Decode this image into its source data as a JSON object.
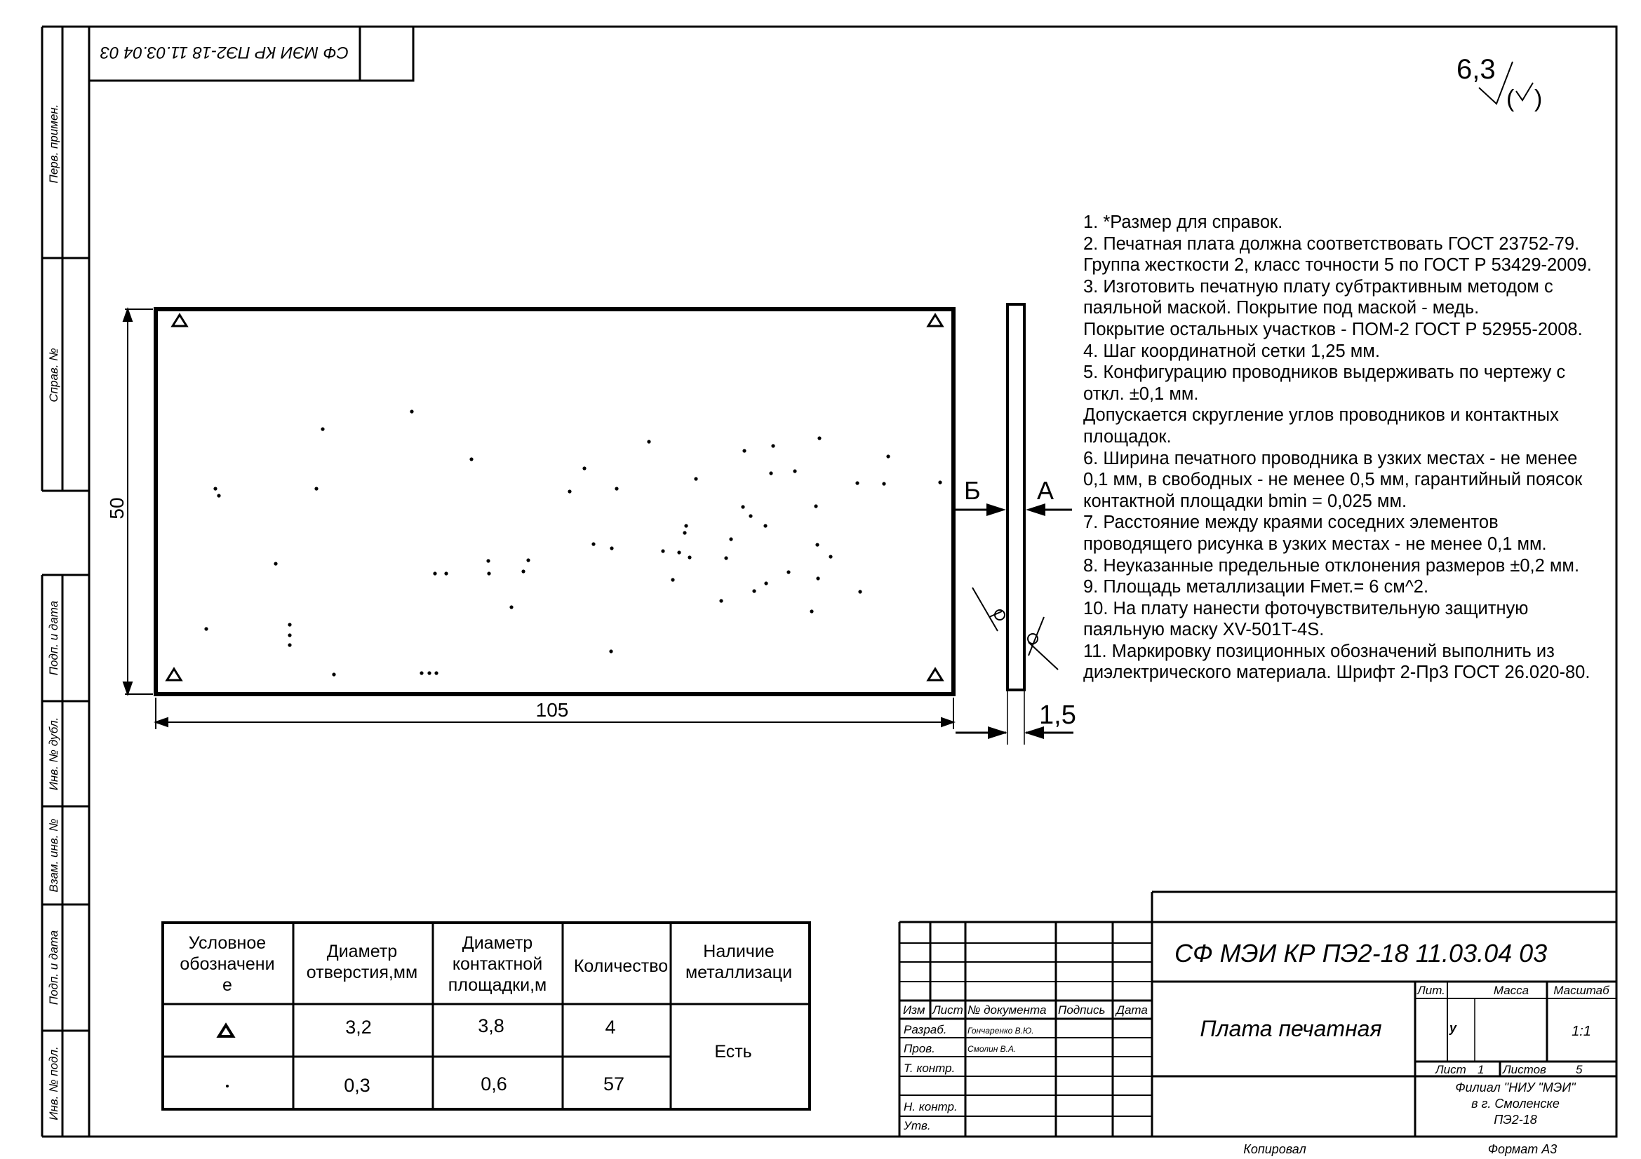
{
  "corner_stamp": "СФ МЭИ КР ПЭ2-18 11.03.04 03",
  "roughness": {
    "value": "6,3"
  },
  "side_labels": [
    "Перв. примен.",
    "Справ. №",
    "Подп. и дата",
    "Инв. № дубл.",
    "Взам. инв. №",
    "Подп. и дата",
    "Инв. № подл."
  ],
  "drawing": {
    "dim_width": "105",
    "dim_height": "50",
    "dim_thickness": "1,5",
    "view_label_b": "Б",
    "view_label_a": "А"
  },
  "notes": [
    "1. *Размер для справок.",
    "2. Печатная плата должна соответствовать ГОСТ 23752-79.",
    "Группа жесткости 2, класс точности 5 по ГОСТ Р 53429-2009.",
    "3. Изготовить печатную плату субтрактивным методом с паяльной маской. Покрытие под маской - медь.",
    "Покрытие остальных участков - ПОМ-2 ГОСТ Р 52955-2008.",
    "4. Шаг координатной сетки 1,25 мм.",
    "5. Конфигурацию проводников выдерживать по чертежу с откл. ±0,1 мм.",
    "Допускается скругление углов проводников и контактных площадок.",
    "6. Ширина печатного проводника в узких местах - не менее 0,1 мм, в свободных - не менее 0,5 мм, гарантийный поясок контактной площадки bmin = 0,025 мм.",
    "7. Расстояние между краями соседних элементов проводящего рисунка в узких местах - не менее 0,1 мм.",
    "8. Неуказанные предельные отклонения размеров ±0,2 мм.",
    "9. Площадь металлизации Fмет.= 6 см^2.",
    "10. На плату нанести фоточувствительную защитную паяльную маску XV-501T-4S.",
    "11. Маркировку позиционных обозначений выполнить из диэлектрического материала. Шрифт 2-Пр3 ГОСТ 26.020-80."
  ],
  "holes_table": {
    "headers": [
      [
        "Условное",
        "обозначени",
        "е"
      ],
      [
        "Диаметр",
        "отверстия,мм"
      ],
      [
        "Диаметр",
        "контактной",
        "площадки,м"
      ],
      [
        "Количество"
      ],
      [
        "Наличие",
        "металлизаци"
      ]
    ],
    "rows": [
      {
        "symbol": "triangle",
        "hole": "3,2",
        "pad": "3,8",
        "count": "4"
      },
      {
        "symbol": "dot",
        "hole": "0,3",
        "pad": "0,6",
        "count": "57"
      }
    ],
    "metallization": "Есть"
  },
  "title_block": {
    "designation": "СФ МЭИ КР ПЭ2-18 11.03.04 03",
    "name": "Плата печатная",
    "col_headers": [
      "Изм",
      "Лист",
      "№ документа",
      "Подпись",
      "Дата"
    ],
    "roles": [
      "Разраб.",
      "Пров.",
      "Т. контр.",
      "Н. контр.",
      "Утв."
    ],
    "developer": "Гончаренко В.Ю.",
    "checker": "Смолин В.А.",
    "lit_label": "Лит.",
    "mass_label": "Масса",
    "scale_label": "Масштаб",
    "lit_value": "у",
    "scale_value": "1:1",
    "sheet_label": "Лист",
    "sheet_value": "1",
    "sheets_label": "Листов",
    "sheets_value": "5",
    "org_lines": [
      "Филиал \"НИУ \"МЭИ\"",
      "в г. Смоленске",
      "ПЭ2-18"
    ],
    "copied": "Копировал",
    "format": "Формат А3"
  }
}
